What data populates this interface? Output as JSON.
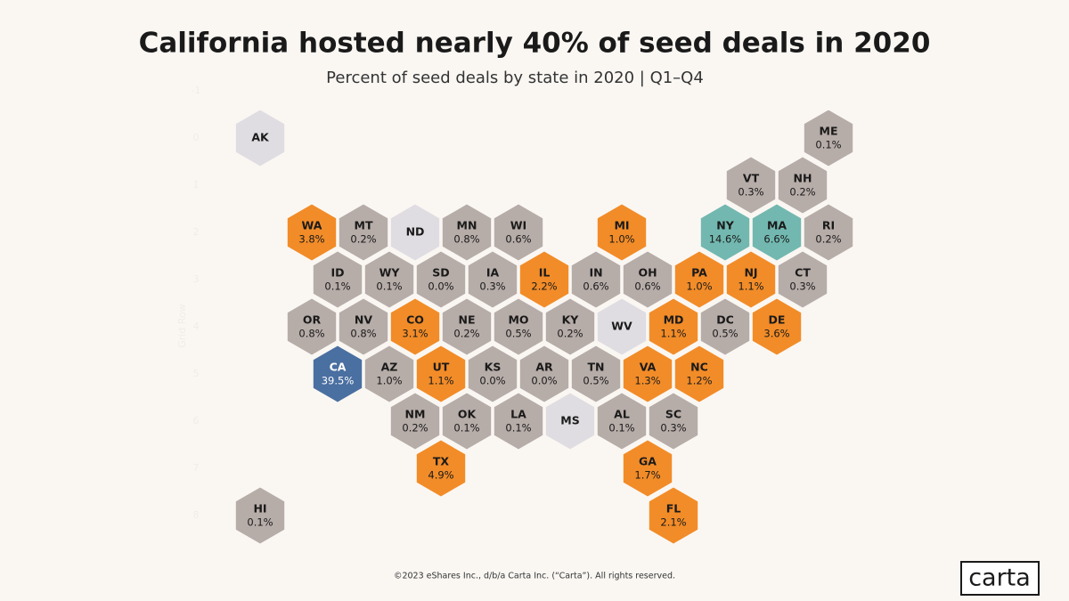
{
  "chart_data": {
    "type": "hexmap",
    "title": "California hosted nearly 40% of seed deals in 2020",
    "subtitle": "Percent of seed deals by state in 2020 | Q1–Q4",
    "ylabel": "Grid Row",
    "yticks": [
      -1,
      0,
      1,
      2,
      3,
      4,
      5,
      6,
      7,
      8
    ],
    "ylim": [
      -1,
      8
    ],
    "categories": [
      "AK",
      "ME",
      "VT",
      "NH",
      "WA",
      "MT",
      "ND",
      "MN",
      "WI",
      "MI",
      "NY",
      "MA",
      "RI",
      "ID",
      "WY",
      "SD",
      "IA",
      "IL",
      "IN",
      "OH",
      "PA",
      "NJ",
      "CT",
      "OR",
      "NV",
      "CO",
      "NE",
      "MO",
      "KY",
      "WV",
      "MD",
      "DC",
      "DE",
      "CA",
      "AZ",
      "UT",
      "KS",
      "AR",
      "TN",
      "VA",
      "NC",
      "NM",
      "OK",
      "LA",
      "MS",
      "AL",
      "SC",
      "TX",
      "GA",
      "HI",
      "FL"
    ],
    "values": [
      null,
      0.1,
      0.3,
      0.2,
      3.8,
      0.2,
      null,
      0.8,
      0.6,
      1.0,
      14.6,
      6.6,
      0.2,
      0.1,
      0.1,
      0.0,
      0.3,
      2.2,
      0.6,
      0.6,
      1.0,
      1.1,
      0.3,
      0.8,
      0.8,
      3.1,
      0.2,
      0.5,
      0.2,
      null,
      1.1,
      0.5,
      3.6,
      39.5,
      1.0,
      1.1,
      0.0,
      0.0,
      0.5,
      1.3,
      1.2,
      0.2,
      0.1,
      0.1,
      null,
      0.1,
      0.3,
      4.9,
      1.7,
      0.1,
      2.1
    ],
    "value_labels": [
      null,
      "0.1%",
      "0.3%",
      "0.2%",
      "3.8%",
      "0.2%",
      null,
      "0.8%",
      "0.6%",
      "1.0%",
      "14.6%",
      "6.6%",
      "0.2%",
      "0.1%",
      "0.1%",
      "0.0%",
      "0.3%",
      "2.2%",
      "0.6%",
      "0.6%",
      "1.0%",
      "1.1%",
      "0.3%",
      "0.8%",
      "0.8%",
      "3.1%",
      "0.2%",
      "0.5%",
      "0.2%",
      null,
      "1.1%",
      "0.5%",
      "3.6%",
      "39.5%",
      "1.0%",
      "1.1%",
      "0.0%",
      "0.0%",
      "0.5%",
      "1.3%",
      "1.2%",
      "0.2%",
      "0.1%",
      "0.1%",
      null,
      "0.1%",
      "0.3%",
      "4.9%",
      "1.7%",
      "0.1%",
      "2.1%"
    ],
    "colors": [
      "#e0dde2",
      "#b6aca8",
      "#b6aca8",
      "#b6aca8",
      "#f28c28",
      "#b6aca8",
      "#e0dde2",
      "#b6aca8",
      "#b6aca8",
      "#f28c28",
      "#72b8b0",
      "#72b8b0",
      "#b6aca8",
      "#b6aca8",
      "#b6aca8",
      "#b6aca8",
      "#b6aca8",
      "#f28c28",
      "#b6aca8",
      "#b6aca8",
      "#f28c28",
      "#f28c28",
      "#b6aca8",
      "#b6aca8",
      "#b6aca8",
      "#f28c28",
      "#b6aca8",
      "#b6aca8",
      "#b6aca8",
      "#e0dde2",
      "#f28c28",
      "#b6aca8",
      "#f28c28",
      "#4a6fa1",
      "#b6aca8",
      "#f28c28",
      "#b6aca8",
      "#b6aca8",
      "#b6aca8",
      "#f28c28",
      "#f28c28",
      "#b6aca8",
      "#b6aca8",
      "#b6aca8",
      "#e0dde2",
      "#b6aca8",
      "#b6aca8",
      "#f28c28",
      "#f28c28",
      "#b6aca8",
      "#f28c28"
    ]
  },
  "footer": "©2023 eShares Inc., d/b/a Carta Inc. (“Carta”). All rights reserved.",
  "logo": "carta"
}
